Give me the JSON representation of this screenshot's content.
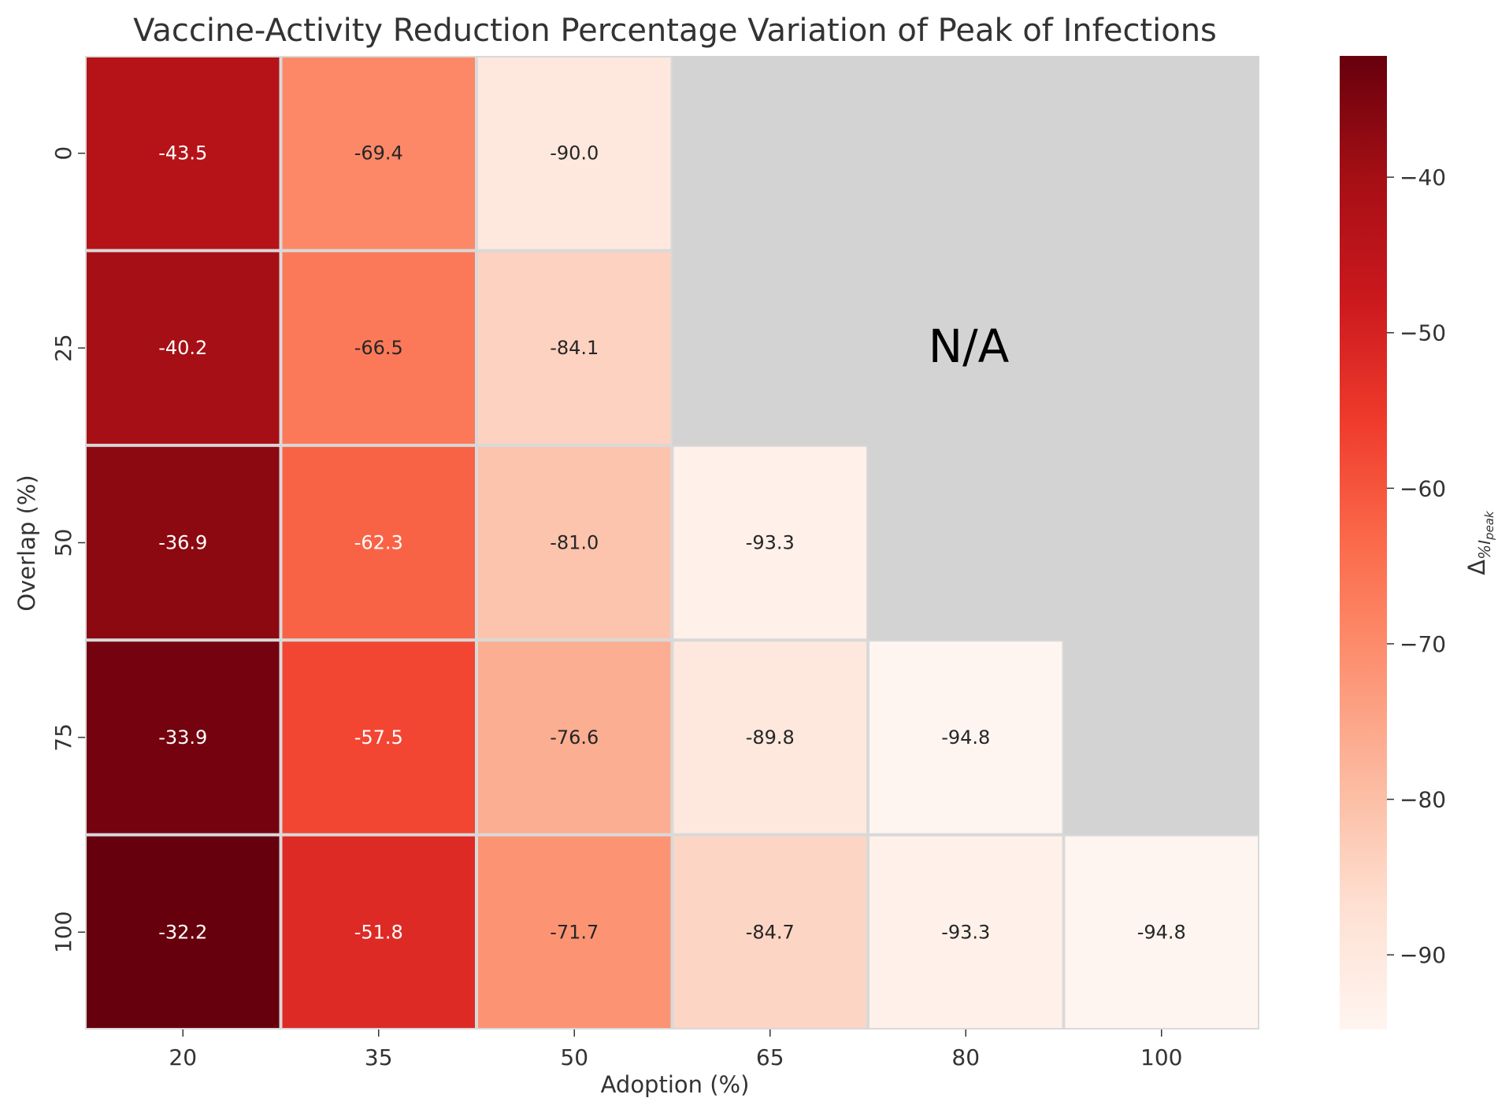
{
  "chart_data": {
    "type": "heatmap",
    "title": "Vaccine-Activity Reduction Percentage Variation of Peak of Infections",
    "xlabel": "Adoption (%)",
    "ylabel": "Overlap (%)",
    "x_categories": [
      "20",
      "35",
      "50",
      "65",
      "80",
      "100"
    ],
    "y_categories": [
      "0",
      "25",
      "50",
      "75",
      "100"
    ],
    "values": [
      [
        -43.5,
        -69.4,
        -90.0,
        null,
        null,
        null
      ],
      [
        -40.2,
        -66.5,
        -84.1,
        null,
        null,
        null
      ],
      [
        -36.9,
        -62.3,
        -81.0,
        -93.3,
        null,
        null
      ],
      [
        -33.9,
        -57.5,
        -76.6,
        -89.8,
        -94.8,
        null
      ],
      [
        -32.2,
        -51.8,
        -71.7,
        -84.7,
        -93.3,
        -94.8
      ]
    ],
    "missing_label": "N/A",
    "missing_color": "#d3d3d3",
    "colormap": "Reds",
    "colorbar": {
      "label_main": "Δ",
      "label_sub": "%I",
      "label_subsub": "peak",
      "range": [
        -94.8,
        -32.2
      ],
      "ticks": [
        -40,
        -50,
        -60,
        -70,
        -80,
        -90
      ],
      "tick_labels": [
        "−40",
        "−50",
        "−60",
        "−70",
        "−80",
        "−90"
      ]
    }
  }
}
